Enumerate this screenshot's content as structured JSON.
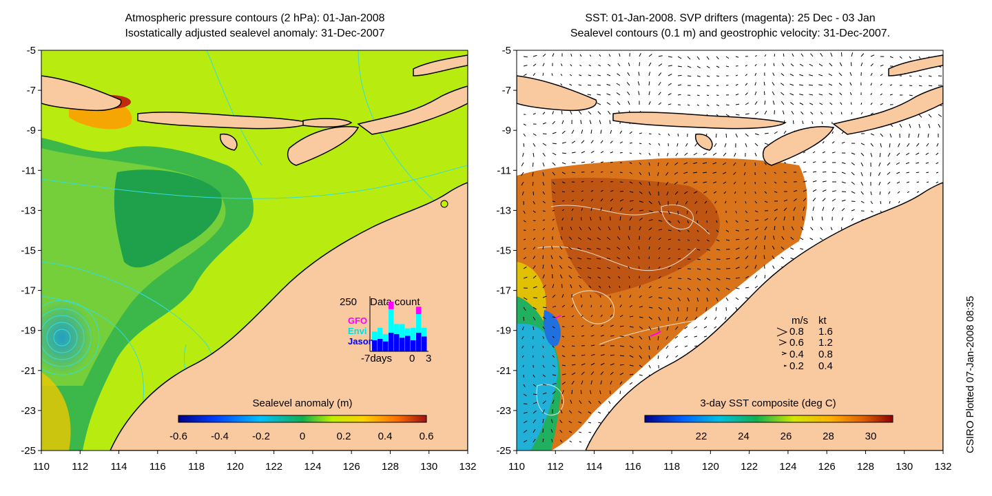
{
  "left_panel": {
    "title_line1": "Atmospheric pressure contours (2 hPa): 01-Jan-2008",
    "title_line2": "Isostatically adjusted sealevel anomaly: 31-Dec-2007",
    "colorbar": {
      "label": "Sealevel anomaly (m)",
      "ticks": [
        "-0.6",
        "-0.4",
        "-0.2",
        "0",
        "0.2",
        "0.4",
        "0.6"
      ]
    },
    "data_count": {
      "max_label": "250",
      "title": "Data count",
      "xticks": [
        "-7days",
        "0",
        "3"
      ],
      "legend": [
        {
          "name": "GFO",
          "color": "#ff00ff"
        },
        {
          "name": "Envi",
          "color": "#00ffff"
        },
        {
          "name": "Jason",
          "color": "#0000ff"
        }
      ],
      "jason": [
        0.18,
        0.2,
        0.16,
        0.3,
        0.28,
        0.22,
        0.25,
        0.18,
        0.3,
        0.24
      ],
      "envi": [
        0.14,
        0.18,
        0.12,
        0.38,
        0.16,
        0.22,
        0.12,
        0.2,
        0.3,
        0.14
      ],
      "gfo": [
        0,
        0,
        0,
        0.12,
        0,
        0,
        0,
        0,
        0.12,
        0
      ]
    }
  },
  "right_panel": {
    "title_line1": "SST: 01-Jan-2008. SVP drifters (magenta): 25 Dec - 03 Jan",
    "title_line2": "Sealevel contours (0.1 m) and geostrophic velocity: 31-Dec-2007.",
    "colorbar": {
      "label": "3-day SST composite (deg C)",
      "ticks": [
        "22",
        "24",
        "26",
        "28",
        "30"
      ]
    },
    "velocity_legend": {
      "header_ms": "m/s",
      "header_kt": "kt",
      "rows": [
        {
          "ms": "0.8",
          "kt": "1.6"
        },
        {
          "ms": "0.6",
          "kt": "1.2"
        },
        {
          "ms": "0.4",
          "kt": "0.8"
        },
        {
          "ms": "0.2",
          "kt": "0.4"
        }
      ]
    }
  },
  "axes": {
    "x_ticks": [
      "110",
      "112",
      "114",
      "116",
      "118",
      "120",
      "122",
      "124",
      "126",
      "128",
      "130",
      "132"
    ],
    "y_ticks": [
      "-5",
      "-7",
      "-9",
      "-11",
      "-13",
      "-15",
      "-17",
      "-19",
      "-21",
      "-23",
      "-25"
    ]
  },
  "credit": "CSIRO Plotted 07-Jan-2008 08:35",
  "colors": {
    "land": "#f9c9a0",
    "ocean_low": "#1fa34a",
    "ocean_high": "#c8f000",
    "contour": "#33dddd"
  }
}
